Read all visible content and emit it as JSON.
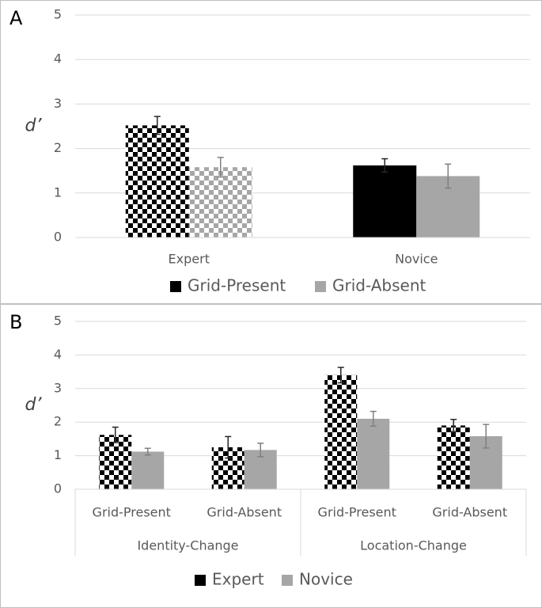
{
  "chart_data": [
    {
      "type": "bar",
      "panel": "A",
      "y_label": "d’",
      "categories": [
        "Expert",
        "Novice"
      ],
      "checkered": "Expert",
      "series": [
        {
          "name": "Grid-Present",
          "color": "#000000",
          "values": [
            2.52,
            1.62
          ],
          "errors": [
            0.2,
            0.15
          ]
        },
        {
          "name": "Grid-Absent",
          "color": "#a6a6a6",
          "values": [
            1.58,
            1.38
          ],
          "errors": [
            0.22,
            0.27
          ]
        }
      ],
      "ylim": [
        0,
        5
      ],
      "yticks": [
        0,
        1,
        2,
        3,
        4,
        5
      ],
      "grid": true
    },
    {
      "type": "bar",
      "panel": "B",
      "y_label": "d’",
      "categories": [
        "Grid-Present",
        "Grid-Absent",
        "Grid-Present",
        "Grid-Absent"
      ],
      "groups": [
        "Identity-Change",
        "Location-Change"
      ],
      "checkered": "Expert",
      "series": [
        {
          "name": "Expert",
          "color": "#000000",
          "values": [
            1.62,
            1.25,
            3.4,
            1.9
          ],
          "errors": [
            0.23,
            0.32,
            0.23,
            0.18
          ]
        },
        {
          "name": "Novice",
          "color": "#a6a6a6",
          "values": [
            1.12,
            1.17,
            2.1,
            1.58
          ],
          "errors": [
            0.1,
            0.2,
            0.22,
            0.35
          ]
        }
      ],
      "ylim": [
        0,
        5
      ],
      "yticks": [
        0,
        1,
        2,
        3,
        4,
        5
      ],
      "grid": true
    }
  ]
}
